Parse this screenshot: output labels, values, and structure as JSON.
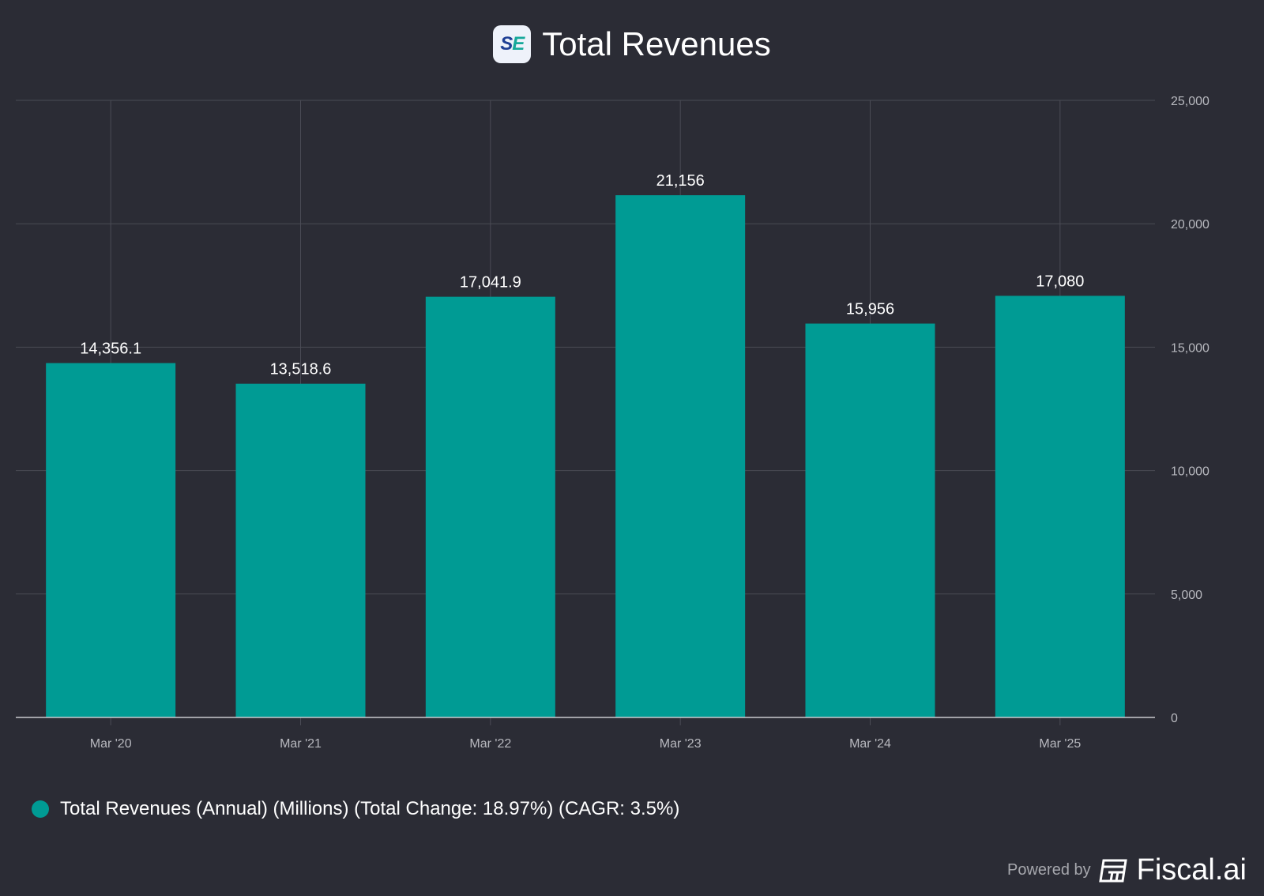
{
  "header": {
    "logo_text": "SE",
    "title": "Total Revenues"
  },
  "chart_data": {
    "type": "bar",
    "title": "Total Revenues",
    "categories": [
      "Mar '20",
      "Mar '21",
      "Mar '22",
      "Mar '23",
      "Mar '24",
      "Mar '25"
    ],
    "values": [
      14356.1,
      13518.6,
      17041.9,
      21156,
      15956,
      17080
    ],
    "value_labels": [
      "14,356.1",
      "13,518.6",
      "17,041.9",
      "21,156",
      "15,956",
      "17,080"
    ],
    "yticks": [
      0,
      5000,
      10000,
      15000,
      20000,
      25000
    ],
    "ytick_labels": [
      "0",
      "5,000",
      "10,000",
      "15,000",
      "20,000",
      "25,000"
    ],
    "ylim": [
      0,
      25000
    ],
    "y_axis_side": "right",
    "grid": true,
    "xlabel": "",
    "ylabel": "",
    "bar_color": "#009b94",
    "legend_placement": "bottom-left"
  },
  "legend": {
    "label": "Total Revenues (Annual) (Millions) (Total Change: 18.97%) (CAGR: 3.5%)",
    "color": "#009b94"
  },
  "footer": {
    "powered_by": "Powered by",
    "brand": "Fiscal.ai"
  }
}
